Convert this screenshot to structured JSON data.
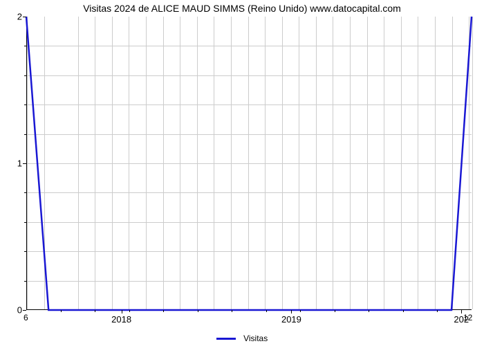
{
  "chart": {
    "type": "line",
    "title": "Visitas 2024 de ALICE MAUD SIMMS (Reino Unido) www.datocapital.com",
    "title_fontsize": 14,
    "title_color": "#000000",
    "background_color": "#ffffff",
    "plot_background": "#ffffff",
    "grid_color": "#cccccc",
    "axis_color": "#000000",
    "line_color": "#1917d3",
    "line_width": 2.5,
    "xlim_label_left": "6",
    "xlim_label_right": "12",
    "x_major_ticks": [
      "2018",
      "2019",
      "202"
    ],
    "x_major_positions": [
      0.2137,
      0.5954,
      0.9771
    ],
    "x_minor_count": 12,
    "ylim": [
      0,
      2
    ],
    "y_major_ticks": [
      "0",
      "1",
      "2"
    ],
    "y_major_positions": [
      1.0,
      0.5,
      0.0
    ],
    "y_minor_per_interval": 4,
    "grid_v_positions": [
      0.0,
      0.0382,
      0.1145,
      0.1527,
      0.1908,
      0.229,
      0.2672,
      0.3053,
      0.3435,
      0.3817,
      0.4198,
      0.458,
      0.4962,
      0.5344,
      0.5725,
      0.6107,
      0.6489,
      0.687,
      0.7252,
      0.7634,
      0.8015,
      0.8397,
      0.8779,
      0.916,
      0.9542,
      0.9924,
      1.0
    ],
    "grid_h_positions": [
      0.1,
      0.2,
      0.3,
      0.4,
      0.5,
      0.6,
      0.7,
      0.8,
      0.9
    ],
    "series": {
      "name": "Visitas",
      "x_frac": [
        0.0,
        0.05,
        0.955,
        1.0
      ],
      "y_frac": [
        0.0,
        1.0,
        1.0,
        0.0
      ]
    },
    "legend": {
      "label": "Visitas",
      "swatch_color": "#1917d3"
    },
    "tick_label_fontsize": 13,
    "corner_label_fontsize": 12
  }
}
